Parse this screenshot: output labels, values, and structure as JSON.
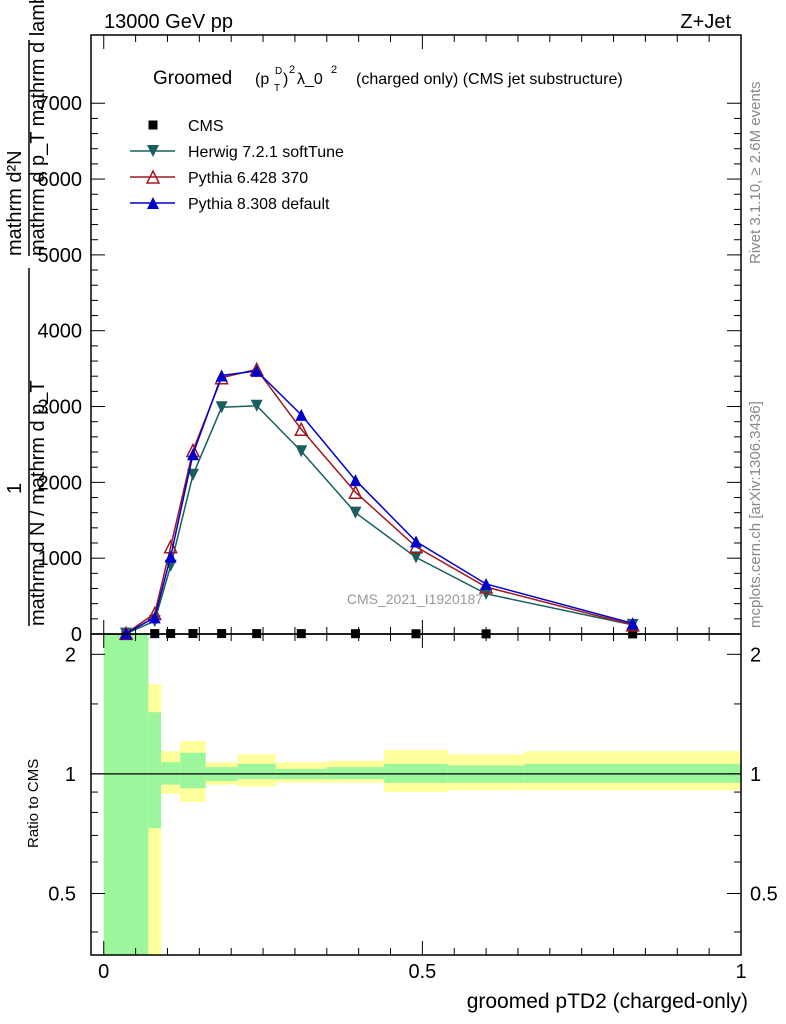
{
  "header": {
    "left": "13000 GeV pp",
    "right": "Z+Jet"
  },
  "side_labels": {
    "rivet": "Rivet 3.1.10, ≥ 2.6M events",
    "mcplots": "mcplots.cern.ch [arXiv:1306.3436]"
  },
  "watermark": "CMS_2021_I1920187",
  "chart_data": [
    {
      "type": "line",
      "title_prefix": "Groomed",
      "title_main": "(charged only) (CMS jet substructure)",
      "ylabel_line1": "mathrm d²N",
      "ylabel_line2": "mathrm d p_T mathrm d lambda",
      "ylabel_left_top": "1",
      "ylabel_left_bottom": "mathrm d N / mathrm d p_T",
      "xlim": [
        -0.02,
        1.0
      ],
      "ylim": [
        0,
        7900
      ],
      "yticks": [
        0,
        1000,
        2000,
        3000,
        4000,
        5000,
        6000,
        7000
      ],
      "ytick_labels": [
        "0",
        "1000",
        "2000",
        "3000",
        "4000",
        "5000",
        "6000",
        "7000"
      ],
      "legend_position": "top-left",
      "series": [
        {
          "name": "CMS",
          "color": "#000000",
          "marker": "square",
          "x": [
            0.035,
            0.08,
            0.105,
            0.14,
            0.185,
            0.24,
            0.31,
            0.395,
            0.49,
            0.6,
            0.83
          ],
          "y": [
            3,
            5,
            6,
            6,
            6,
            5,
            5,
            4,
            3,
            2,
            1
          ]
        },
        {
          "name": "Herwig 7.2.1 softTune",
          "color": "#1a5f5f",
          "marker": "triangle-down",
          "x": [
            0.035,
            0.08,
            0.105,
            0.14,
            0.185,
            0.24,
            0.31,
            0.395,
            0.49,
            0.6,
            0.83
          ],
          "y": [
            5,
            170,
            900,
            2100,
            2990,
            3010,
            2410,
            1600,
            1010,
            530,
            120
          ]
        },
        {
          "name": "Pythia 6.428 370",
          "color": "#a01820",
          "marker": "triangle-open",
          "x": [
            0.035,
            0.08,
            0.105,
            0.14,
            0.185,
            0.24,
            0.31,
            0.395,
            0.49,
            0.6,
            0.83
          ],
          "y": [
            8,
            270,
            1150,
            2420,
            3380,
            3490,
            2700,
            1870,
            1150,
            620,
            120
          ]
        },
        {
          "name": "Pythia 8.308 default",
          "color": "#0000cc",
          "marker": "triangle-up",
          "x": [
            0.035,
            0.08,
            0.105,
            0.14,
            0.185,
            0.24,
            0.31,
            0.395,
            0.49,
            0.6,
            0.83
          ],
          "y": [
            6,
            220,
            1020,
            2370,
            3410,
            3470,
            2890,
            2030,
            1220,
            660,
            140
          ]
        }
      ]
    },
    {
      "type": "area",
      "ylabel": "Ratio to CMS",
      "xlabel": "groomed pTD2 (charged-only)",
      "xlim": [
        -0.02,
        1.0
      ],
      "ylim": [
        0.35,
        2.25
      ],
      "xticks": [
        0,
        0.5,
        1
      ],
      "xtick_labels": [
        "0",
        "0.5",
        "1"
      ],
      "yticks": [
        0.5,
        1,
        2
      ],
      "ytick_labels": [
        "0.5",
        "1",
        "2"
      ],
      "reference_line": 1,
      "bins": [
        {
          "x0": 0.0,
          "x1": 0.07,
          "stat_lo": 0.35,
          "stat_hi": 2.25,
          "tot_lo": 0.35,
          "tot_hi": 2.25
        },
        {
          "x0": 0.07,
          "x1": 0.09,
          "stat_lo": 0.73,
          "stat_hi": 1.43,
          "tot_lo": 0.35,
          "tot_hi": 1.68
        },
        {
          "x0": 0.09,
          "x1": 0.12,
          "stat_lo": 0.94,
          "stat_hi": 1.07,
          "tot_lo": 0.89,
          "tot_hi": 1.14
        },
        {
          "x0": 0.12,
          "x1": 0.16,
          "stat_lo": 0.92,
          "stat_hi": 1.13,
          "tot_lo": 0.85,
          "tot_hi": 1.21
        },
        {
          "x0": 0.16,
          "x1": 0.21,
          "stat_lo": 0.96,
          "stat_hi": 1.04,
          "tot_lo": 0.94,
          "tot_hi": 1.07
        },
        {
          "x0": 0.21,
          "x1": 0.27,
          "stat_lo": 0.97,
          "stat_hi": 1.06,
          "tot_lo": 0.93,
          "tot_hi": 1.12
        },
        {
          "x0": 0.27,
          "x1": 0.35,
          "stat_lo": 0.97,
          "stat_hi": 1.03,
          "tot_lo": 0.95,
          "tot_hi": 1.07
        },
        {
          "x0": 0.35,
          "x1": 0.44,
          "stat_lo": 0.97,
          "stat_hi": 1.04,
          "tot_lo": 0.95,
          "tot_hi": 1.08
        },
        {
          "x0": 0.44,
          "x1": 0.54,
          "stat_lo": 0.95,
          "stat_hi": 1.06,
          "tot_lo": 0.9,
          "tot_hi": 1.15
        },
        {
          "x0": 0.54,
          "x1": 0.66,
          "stat_lo": 0.95,
          "stat_hi": 1.05,
          "tot_lo": 0.91,
          "tot_hi": 1.12
        },
        {
          "x0": 0.66,
          "x1": 1.0,
          "stat_lo": 0.95,
          "stat_hi": 1.06,
          "tot_lo": 0.91,
          "tot_hi": 1.14
        }
      ],
      "colors": {
        "stat": "#9cf79c",
        "total": "#ffff9c"
      }
    }
  ]
}
